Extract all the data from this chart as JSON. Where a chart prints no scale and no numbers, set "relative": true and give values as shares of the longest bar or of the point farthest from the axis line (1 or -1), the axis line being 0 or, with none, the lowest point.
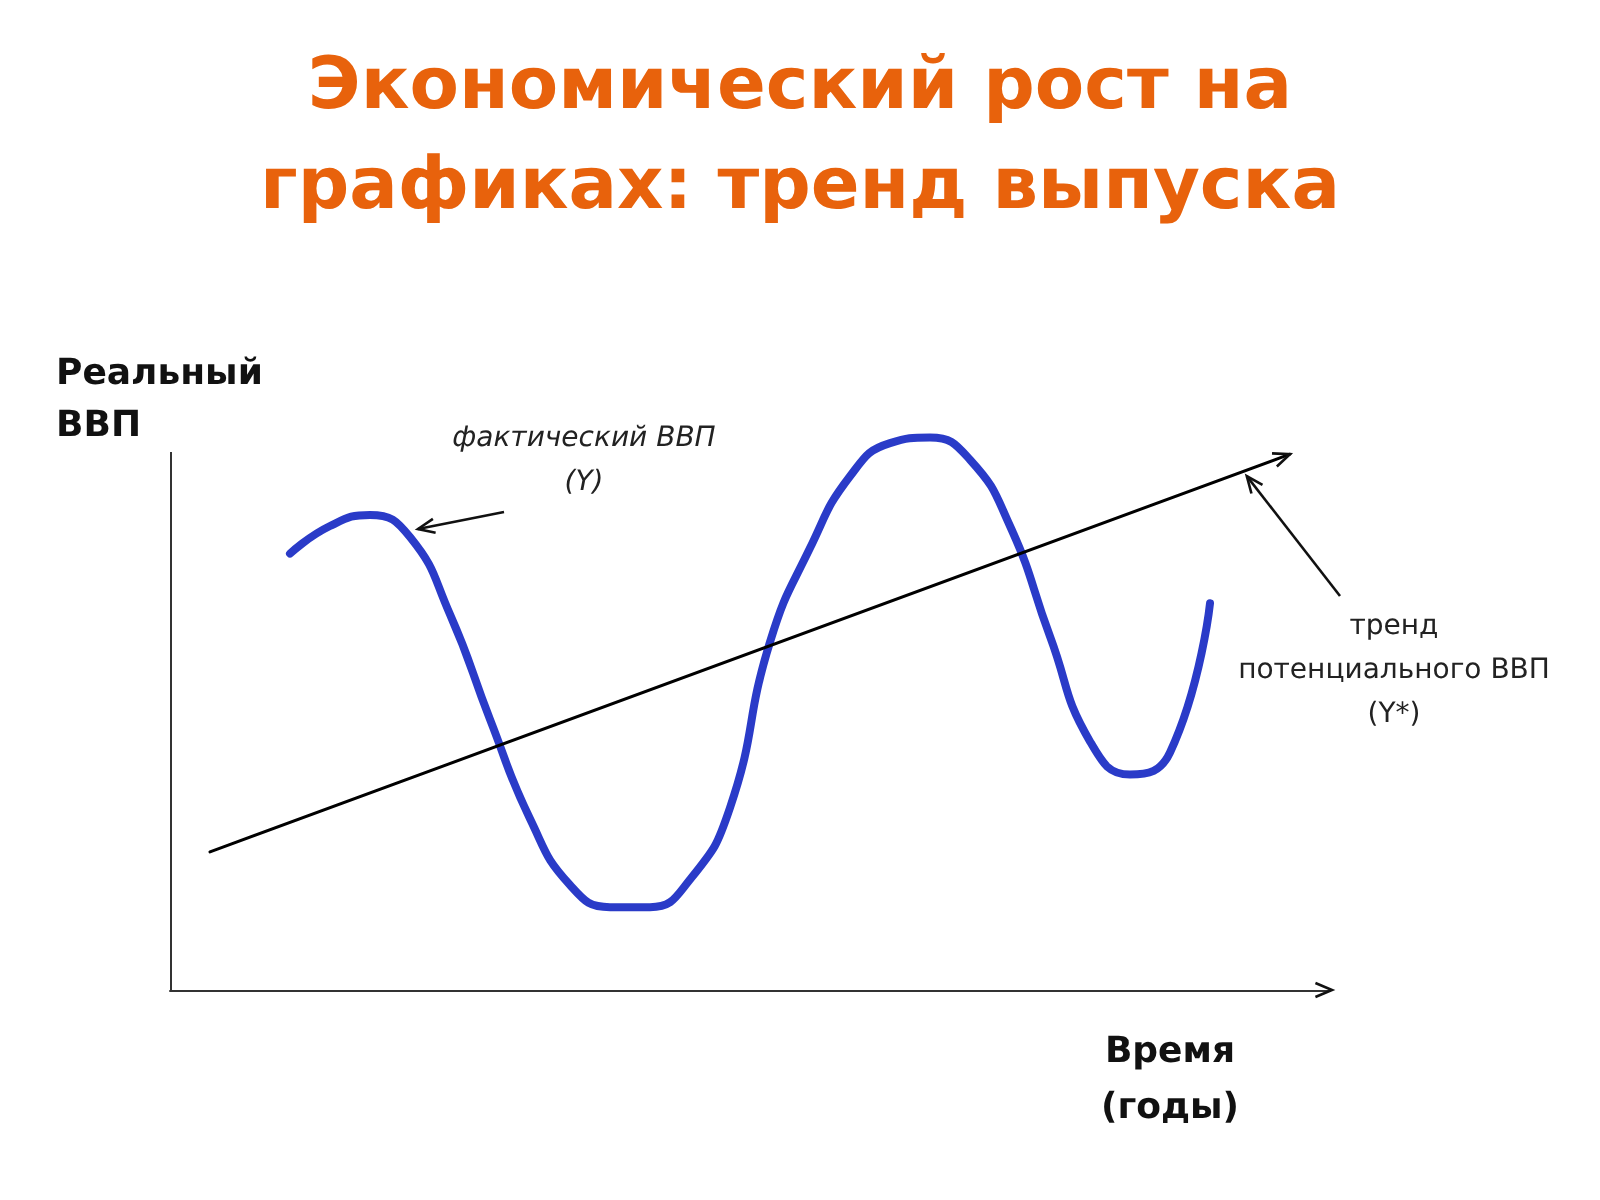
{
  "chart_data": {
    "type": "line",
    "title": "Экономический рост на графиках: тренд выпуска",
    "xlabel": "Время (годы)",
    "ylabel": "Реальный ВВП",
    "relative": true,
    "legend": false,
    "grid": false,
    "marker": "none",
    "line_style": "solid",
    "categories": [
      null,
      null,
      null,
      null,
      null,
      null,
      null,
      null,
      null,
      null,
      null,
      null,
      null,
      null,
      null,
      null,
      null,
      null,
      null,
      null,
      null,
      null,
      null,
      null,
      null,
      null,
      null,
      null,
      null,
      null
    ],
    "series": [
      {
        "name": "фактический ВВП (Y)",
        "color": "#2a3bc8",
        "values": [
          null,
          null,
          null,
          0.79,
          0.84,
          0.86,
          0.82,
          0.68,
          0.49,
          0.31,
          0.19,
          0.15,
          0.15,
          0.2,
          0.33,
          0.63,
          0.8,
          0.93,
          0.99,
          1,
          0.96,
          0.84,
          0.64,
          0.45,
          0.39,
          0.43,
          0.7,
          null,
          null,
          null
        ]
      },
      {
        "name": "тренд потенциального ВВП (Y*)",
        "color": "#000000",
        "values": [
          null,
          0.25,
          null,
          null,
          null,
          null,
          null,
          null,
          null,
          null,
          null,
          null,
          null,
          null,
          null,
          null,
          null,
          null,
          null,
          null,
          null,
          null,
          null,
          null,
          null,
          null,
          null,
          null,
          0.97,
          null
        ]
      }
    ]
  }
}
